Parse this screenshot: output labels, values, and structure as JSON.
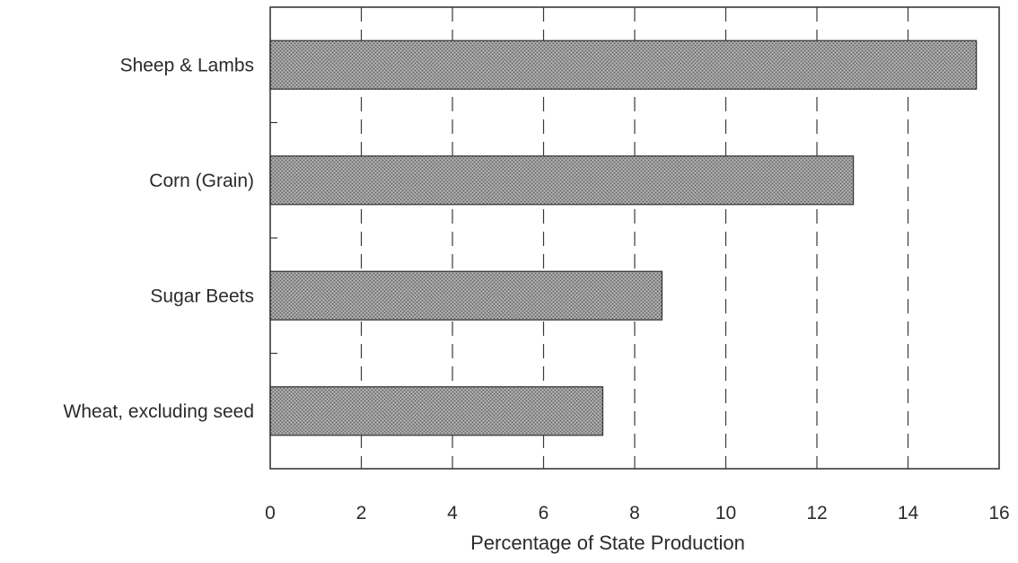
{
  "chart_data": {
    "type": "bar",
    "orientation": "horizontal",
    "categories": [
      "Sheep & Lambs",
      "Corn (Grain)",
      "Sugar Beets",
      "Wheat, excluding seed"
    ],
    "values": [
      15.5,
      12.8,
      8.6,
      7.3
    ],
    "title": "",
    "xlabel": "Percentage of State Production",
    "ylabel": "",
    "xlim": [
      0,
      16
    ],
    "xticks": [
      0,
      2,
      4,
      6,
      8,
      10,
      12,
      14,
      16
    ],
    "xtick_labels": [
      "0",
      "2",
      "4",
      "6",
      "8",
      "10",
      "12",
      "14",
      "16"
    ],
    "grid": "vertical dashed",
    "legend": "none",
    "colors": {
      "bar_fill": "#8a8a8a",
      "bar_stroke": "#3a3a3a",
      "axis": "#3a3a3a",
      "grid": "#3a3a3a",
      "text": "#2b2b2b"
    }
  }
}
